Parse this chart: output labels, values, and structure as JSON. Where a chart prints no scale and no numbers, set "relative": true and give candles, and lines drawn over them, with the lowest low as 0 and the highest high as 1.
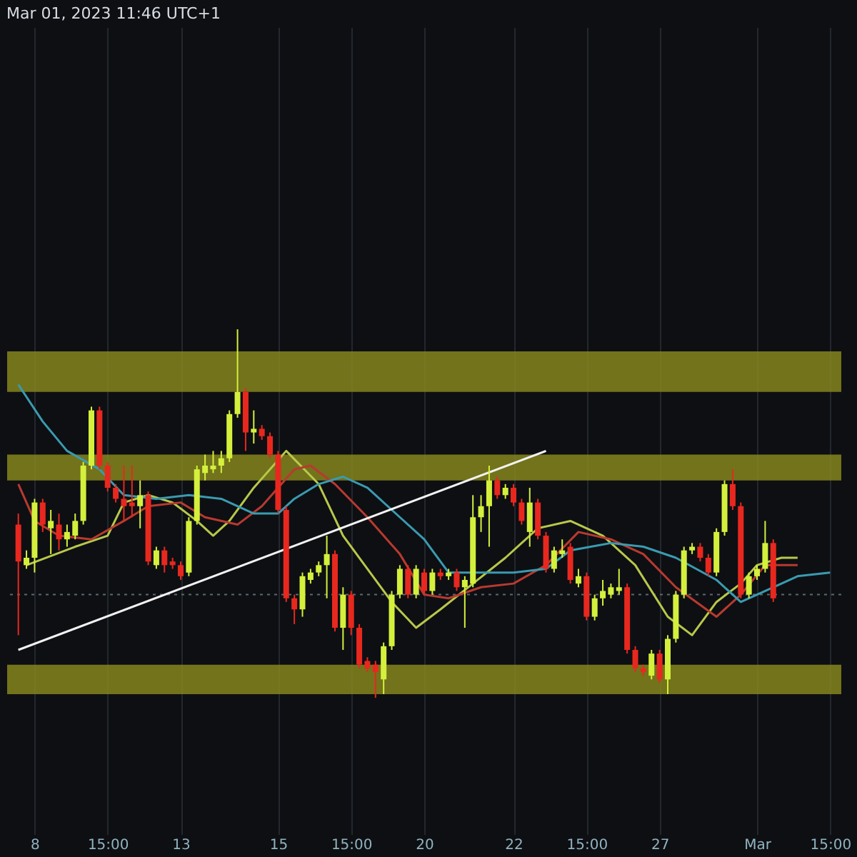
{
  "chart_data": {
    "type": "candlestick",
    "title": "Mar 01, 2023 11:46 UTC+1",
    "relative": true,
    "grid": "x",
    "categories": [
      null,
      null,
      "8",
      null,
      null,
      null,
      null,
      null,
      null,
      null,
      null,
      "15:00",
      null,
      null,
      null,
      null,
      null,
      null,
      null,
      null,
      "13",
      null,
      null,
      null,
      null,
      null,
      null,
      null,
      null,
      null,
      null,
      null,
      "15",
      null,
      null,
      null,
      null,
      null,
      null,
      null,
      null,
      "15:00",
      null,
      null,
      null,
      null,
      null,
      null,
      null,
      null,
      "20",
      null,
      null,
      null,
      null,
      null,
      null,
      null,
      null,
      null,
      null,
      "22",
      null,
      null,
      null,
      null,
      null,
      null,
      null,
      null,
      "15:00",
      null,
      null,
      null,
      null,
      null,
      null,
      null,
      null,
      "27",
      null,
      null,
      null,
      null,
      null,
      null,
      null,
      null,
      null,
      null,
      null,
      "Mar",
      null,
      null,
      null,
      null,
      null,
      null,
      null,
      null,
      "15:00"
    ],
    "colors": [
      "#e8281e",
      "#d4f03c",
      "#d4f03c",
      "#e8281e",
      "#d4f03c",
      "#e8281e",
      "#d4f03c",
      "#d4f03c",
      "#d4f03c",
      "#d4f03c",
      "#e8281e",
      "#e8281e",
      "#e8281e",
      "#e8281e",
      "#e8281e",
      "#d4f03c",
      "#e8281e",
      "#d4f03c",
      "#e8281e",
      "#e8281e",
      "#e8281e",
      "#d4f03c",
      "#d4f03c",
      "#d4f03c",
      "#d4f03c",
      "#d4f03c",
      "#d4f03c",
      "#d4f03c",
      "#e8281e",
      "#d4f03c",
      "#e8281e",
      "#e8281e",
      "#e8281e",
      "#e8281e",
      "#e8281e",
      "#d4f03c",
      "#d4f03c",
      "#d4f03c",
      "#d4f03c",
      "#e8281e",
      "#d4f03c",
      "#e8281e",
      "#e8281e",
      "#e8281e",
      "#e8281e",
      "#d4f03c",
      "#d4f03c",
      "#d4f03c",
      "#e8281e",
      "#d4f03c",
      "#e8281e",
      "#d4f03c",
      "#e8281e",
      "#d4f03c",
      "#e8281e",
      "#d4f03c",
      "#d4f03c",
      "#d4f03c",
      "#d4f03c",
      "#e8281e",
      "#d4f03c",
      "#e8281e",
      "#e8281e",
      "#d4f03c",
      "#e8281e",
      "#e8281e",
      "#d4f03c",
      "#d4f03c",
      "#e8281e",
      "#d4f03c",
      "#e8281e",
      "#d4f03c",
      "#d4f03c",
      "#d4f03c",
      "#d4f03c",
      "#e8281e",
      "#e8281e",
      "#e8281e",
      "#d4f03c",
      "#e8281e",
      "#d4f03c",
      "#d4f03c",
      "#d4f03c",
      "#d4f03c",
      "#e8281e",
      "#e8281e",
      "#d4f03c",
      "#d4f03c",
      "#e8281e",
      "#e8281e",
      "#d4f03c",
      "#d4f03c",
      "#d4f03c",
      "#e8281e",
      null,
      null,
      null,
      null,
      null,
      null,
      null
    ],
    "ohlc": [
      [
        0.47,
        0.5,
        0.17,
        0.37
      ],
      [
        0.36,
        0.4,
        0.35,
        0.38
      ],
      [
        0.38,
        0.54,
        0.34,
        0.53
      ],
      [
        0.53,
        0.54,
        0.45,
        0.47
      ],
      [
        0.46,
        0.51,
        0.39,
        0.48
      ],
      [
        0.47,
        0.5,
        0.4,
        0.43
      ],
      [
        0.43,
        0.47,
        0.41,
        0.45
      ],
      [
        0.44,
        0.5,
        0.43,
        0.48
      ],
      [
        0.48,
        0.64,
        0.47,
        0.63
      ],
      [
        0.63,
        0.79,
        0.62,
        0.78
      ],
      [
        0.78,
        0.79,
        0.62,
        0.63
      ],
      [
        0.63,
        0.64,
        0.56,
        0.57
      ],
      [
        0.57,
        0.58,
        0.53,
        0.54
      ],
      [
        0.54,
        0.63,
        0.48,
        0.52
      ],
      [
        0.53,
        0.63,
        0.49,
        0.52
      ],
      [
        0.52,
        0.59,
        0.46,
        0.55
      ],
      [
        0.55,
        0.56,
        0.36,
        0.37
      ],
      [
        0.36,
        0.41,
        0.35,
        0.4
      ],
      [
        0.4,
        0.41,
        0.34,
        0.36
      ],
      [
        0.37,
        0.38,
        0.35,
        0.36
      ],
      [
        0.36,
        0.37,
        0.32,
        0.33
      ],
      [
        0.34,
        0.49,
        0.33,
        0.48
      ],
      [
        0.48,
        0.63,
        0.47,
        0.62
      ],
      [
        0.61,
        0.66,
        0.59,
        0.63
      ],
      [
        0.62,
        0.67,
        0.61,
        0.63
      ],
      [
        0.63,
        0.67,
        0.61,
        0.65
      ],
      [
        0.65,
        0.78,
        0.64,
        0.77
      ],
      [
        0.77,
        1,
        0.76,
        0.83
      ],
      [
        0.83,
        0.84,
        0.67,
        0.72
      ],
      [
        0.72,
        0.78,
        0.69,
        0.73
      ],
      [
        0.73,
        0.74,
        0.7,
        0.71
      ],
      [
        0.71,
        0.72,
        0.65,
        0.66
      ],
      [
        0.66,
        0.67,
        0.5,
        0.51
      ],
      [
        0.51,
        0.52,
        0.26,
        0.27
      ],
      [
        0.27,
        0.28,
        0.2,
        0.24
      ],
      [
        0.24,
        0.34,
        0.22,
        0.33
      ],
      [
        0.32,
        0.35,
        0.31,
        0.34
      ],
      [
        0.34,
        0.37,
        0.33,
        0.36
      ],
      [
        0.36,
        0.44,
        0.27,
        0.39
      ],
      [
        0.39,
        0.4,
        0.18,
        0.19
      ],
      [
        0.19,
        0.3,
        0.13,
        0.28
      ],
      [
        0.28,
        0.29,
        0.17,
        0.19
      ],
      [
        0.19,
        0.2,
        0.08,
        0.09
      ],
      [
        0.1,
        0.11,
        0.07,
        0.08
      ],
      [
        0.09,
        0.1,
        0,
        0.07
      ],
      [
        0.05,
        0.15,
        0.01,
        0.14
      ],
      [
        0.14,
        0.29,
        0.13,
        0.28
      ],
      [
        0.28,
        0.36,
        0.27,
        0.35
      ],
      [
        0.35,
        0.36,
        0.27,
        0.28
      ],
      [
        0.28,
        0.36,
        0.27,
        0.35
      ],
      [
        0.34,
        0.35,
        0.28,
        0.29
      ],
      [
        0.29,
        0.35,
        0.28,
        0.34
      ],
      [
        0.34,
        0.35,
        0.32,
        0.33
      ],
      [
        0.33,
        0.35,
        0.32,
        0.34
      ],
      [
        0.34,
        0.35,
        0.29,
        0.3
      ],
      [
        0.3,
        0.33,
        0.19,
        0.32
      ],
      [
        0.31,
        0.55,
        0.3,
        0.49
      ],
      [
        0.49,
        0.55,
        0.45,
        0.52
      ],
      [
        0.52,
        0.63,
        0.41,
        0.59
      ],
      [
        0.59,
        0.6,
        0.54,
        0.55
      ],
      [
        0.55,
        0.58,
        0.54,
        0.57
      ],
      [
        0.57,
        0.58,
        0.52,
        0.53
      ],
      [
        0.53,
        0.54,
        0.47,
        0.48
      ],
      [
        0.45,
        0.57,
        0.41,
        0.53
      ],
      [
        0.53,
        0.54,
        0.43,
        0.44
      ],
      [
        0.44,
        0.45,
        0.34,
        0.35
      ],
      [
        0.35,
        0.41,
        0.34,
        0.4
      ],
      [
        0.39,
        0.43,
        0.38,
        0.4
      ],
      [
        0.41,
        0.42,
        0.31,
        0.32
      ],
      [
        0.31,
        0.35,
        0.3,
        0.33
      ],
      [
        0.33,
        0.34,
        0.21,
        0.22
      ],
      [
        0.22,
        0.28,
        0.21,
        0.27
      ],
      [
        0.27,
        0.32,
        0.25,
        0.29
      ],
      [
        0.28,
        0.31,
        0.27,
        0.3
      ],
      [
        0.29,
        0.35,
        0.28,
        0.3
      ],
      [
        0.3,
        0.31,
        0.12,
        0.13
      ],
      [
        0.13,
        0.14,
        0.07,
        0.08
      ],
      [
        0.08,
        0.09,
        0.06,
        0.07
      ],
      [
        0.06,
        0.13,
        0.05,
        0.12
      ],
      [
        0.12,
        0.13,
        0.04,
        0.05
      ],
      [
        0.05,
        0.17,
        0.01,
        0.16
      ],
      [
        0.16,
        0.29,
        0.15,
        0.28
      ],
      [
        0.28,
        0.41,
        0.27,
        0.4
      ],
      [
        0.4,
        0.42,
        0.39,
        0.41
      ],
      [
        0.41,
        0.42,
        0.37,
        0.38
      ],
      [
        0.38,
        0.39,
        0.33,
        0.34
      ],
      [
        0.34,
        0.46,
        0.33,
        0.45
      ],
      [
        0.45,
        0.59,
        0.44,
        0.58
      ],
      [
        0.58,
        0.62,
        0.51,
        0.52
      ],
      [
        0.52,
        0.53,
        0.27,
        0.28
      ],
      [
        0.28,
        0.34,
        0.27,
        0.33
      ],
      [
        0.33,
        0.36,
        0.32,
        0.35
      ],
      [
        0.35,
        0.48,
        0.34,
        0.42
      ],
      [
        0.42,
        0.43,
        0.26,
        0.27
      ],
      null,
      null,
      null,
      null,
      null,
      null,
      null
    ],
    "series": [
      {
        "type": "line",
        "color": "#b8c84a",
        "values": [
          null,
          0.36,
          null,
          null,
          null,
          null,
          null,
          0.41,
          null,
          null,
          null,
          0.44,
          null,
          0.53,
          null,
          null,
          0.55,
          null,
          null,
          0.53,
          null,
          null,
          0.48,
          null,
          0.44,
          null,
          0.48,
          null,
          null,
          0.57,
          null,
          null,
          null,
          0.67,
          null,
          null,
          null,
          0.58,
          null,
          null,
          0.44,
          null,
          null,
          null,
          null,
          null,
          0.26,
          null,
          null,
          0.19,
          null,
          null,
          0.24,
          null,
          null,
          null,
          0.31,
          null,
          null,
          null,
          0.38,
          null,
          null,
          null,
          0.46,
          null,
          null,
          null,
          0.48,
          null,
          null,
          null,
          0.44,
          null,
          null,
          null,
          0.36,
          null,
          null,
          null,
          0.22,
          null,
          null,
          0.17,
          null,
          null,
          0.26,
          null,
          null,
          0.31,
          null,
          0.36,
          null,
          null,
          0.38,
          null,
          0.38,
          null,
          null,
          null,
          null
        ]
      },
      {
        "type": "line",
        "color": "#b83a30",
        "values": [
          0.58,
          null,
          0.48,
          null,
          null,
          0.44,
          null,
          null,
          null,
          0.43,
          null,
          null,
          null,
          0.48,
          null,
          null,
          0.52,
          null,
          null,
          null,
          0.53,
          null,
          null,
          0.49,
          null,
          null,
          null,
          0.47,
          null,
          null,
          0.52,
          null,
          null,
          null,
          0.62,
          null,
          0.63,
          null,
          null,
          0.58,
          null,
          null,
          null,
          0.49,
          null,
          null,
          null,
          0.39,
          null,
          null,
          0.28,
          null,
          null,
          0.27,
          null,
          null,
          null,
          0.3,
          null,
          null,
          null,
          0.31,
          null,
          null,
          null,
          0.36,
          null,
          null,
          null,
          0.45,
          null,
          null,
          null,
          0.43,
          null,
          null,
          null,
          0.39,
          null,
          null,
          null,
          0.3,
          null,
          null,
          null,
          null,
          0.22,
          null,
          null,
          0.28,
          null,
          null,
          0.36,
          null,
          null,
          null,
          0.36,
          null,
          null,
          null,
          null
        ]
      },
      {
        "type": "line",
        "color": "#3a9bb0",
        "values": [
          0.85,
          null,
          null,
          0.75,
          null,
          null,
          0.67,
          null,
          null,
          null,
          0.62,
          null,
          null,
          0.55,
          null,
          null,
          null,
          0.54,
          null,
          null,
          null,
          0.55,
          null,
          null,
          null,
          0.54,
          null,
          null,
          null,
          0.5,
          null,
          null,
          0.5,
          null,
          0.54,
          null,
          null,
          0.58,
          null,
          null,
          0.6,
          null,
          null,
          0.57,
          null,
          null,
          null,
          0.49,
          null,
          null,
          0.43,
          null,
          null,
          0.34,
          null,
          null,
          null,
          0.34,
          null,
          null,
          null,
          0.34,
          null,
          null,
          null,
          0.35,
          null,
          null,
          0.4,
          null,
          null,
          null,
          null,
          0.42,
          null,
          null,
          null,
          0.41,
          null,
          null,
          null,
          0.38,
          null,
          null,
          null,
          null,
          0.32,
          null,
          null,
          0.26,
          null,
          null,
          null,
          0.3,
          null,
          null,
          0.33,
          null,
          null,
          null,
          0.34
        ]
      },
      {
        "type": "line",
        "color": "#f2f2f2",
        "values": [
          0.13,
          null,
          null,
          null,
          null,
          null,
          null,
          null,
          null,
          null,
          null,
          null,
          null,
          null,
          null,
          null,
          null,
          null,
          null,
          null,
          null,
          null,
          null,
          null,
          null,
          null,
          null,
          null,
          null,
          null,
          null,
          null,
          null,
          null,
          null,
          null,
          null,
          null,
          null,
          null,
          null,
          null,
          null,
          null,
          null,
          null,
          null,
          null,
          null,
          null,
          null,
          null,
          null,
          null,
          null,
          null,
          null,
          null,
          null,
          null,
          null,
          null,
          null,
          null,
          null,
          0.67,
          null,
          null,
          null,
          null,
          null,
          null,
          null,
          null,
          null,
          null,
          null,
          null,
          null,
          null,
          null,
          null,
          null,
          null,
          null,
          null,
          null,
          null,
          null,
          null,
          null,
          null,
          null,
          null,
          null,
          null,
          null,
          null,
          null,
          null,
          null
        ]
      }
    ],
    "bands": [
      {
        "axis": "y",
        "from": 0.83,
        "to": 0.94,
        "color": "#8c8c1e"
      },
      {
        "axis": "y",
        "from": 0.59,
        "to": 0.66,
        "color": "#8c8c1e"
      },
      {
        "axis": "y",
        "from": 0.01,
        "to": 0.09,
        "color": "#8c8c1e"
      }
    ],
    "ref_lines": [
      {
        "axis": "y",
        "value": 0.28,
        "color": "#5a6a70",
        "line_style": "dotted"
      }
    ]
  }
}
